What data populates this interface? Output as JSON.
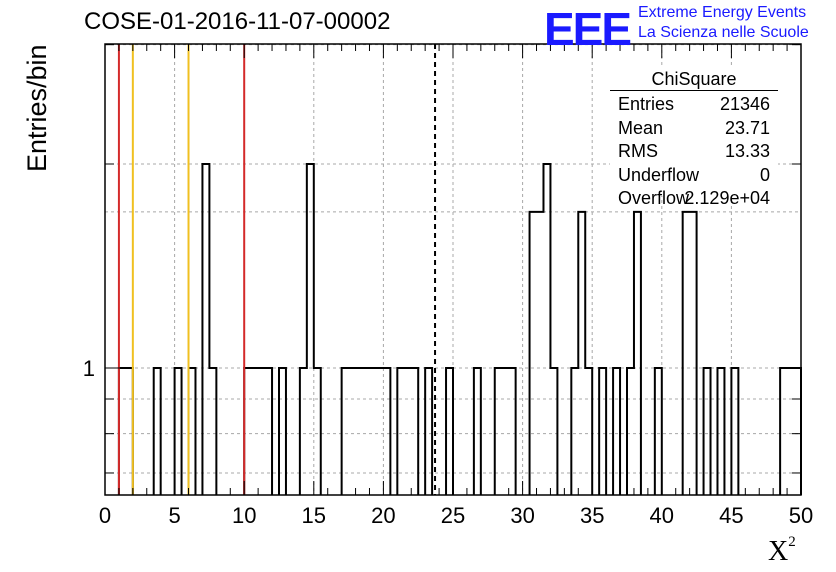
{
  "chart_data": {
    "type": "histogram",
    "title": "COSE-01-2016-11-07-00002",
    "xlabel": "X",
    "xlabel_superscript": "2",
    "ylabel": "Entries/bin",
    "xlim": [
      0,
      50
    ],
    "y_scale": "log",
    "xticks": [
      0,
      5,
      10,
      15,
      20,
      25,
      30,
      35,
      40,
      45,
      50
    ],
    "ytick_label": "1",
    "grid": true,
    "bin_width": 0.5,
    "bins": [
      [
        1,
        2,
        1
      ],
      [
        3.5,
        4,
        1
      ],
      [
        5,
        5.5,
        1
      ],
      [
        6,
        6.5,
        1
      ],
      [
        7,
        7.5,
        2
      ],
      [
        7.5,
        8,
        1
      ],
      [
        10,
        12,
        1
      ],
      [
        12.5,
        13,
        1
      ],
      [
        14,
        14.5,
        1
      ],
      [
        14.5,
        15,
        2
      ],
      [
        15,
        15.5,
        1
      ],
      [
        17,
        18.5,
        1
      ],
      [
        18.5,
        20.5,
        1
      ],
      [
        21,
        21.5,
        1
      ],
      [
        21.5,
        22,
        1
      ],
      [
        22,
        22.5,
        1
      ],
      [
        23,
        23.5,
        1
      ],
      [
        24.5,
        25,
        1
      ],
      [
        26.5,
        27,
        1
      ],
      [
        28,
        28.5,
        1
      ],
      [
        28.5,
        29,
        1
      ],
      [
        29,
        29.5,
        1
      ],
      [
        30.5,
        31.5,
        1.7
      ],
      [
        31.5,
        32,
        2
      ],
      [
        32,
        32.5,
        1
      ],
      [
        33.5,
        34,
        1
      ],
      [
        34,
        34.5,
        1.7
      ],
      [
        34.5,
        35,
        1
      ],
      [
        35.5,
        36,
        1
      ],
      [
        36.5,
        37,
        1
      ],
      [
        37.5,
        38,
        1
      ],
      [
        38,
        38.5,
        1.7
      ],
      [
        39.5,
        40,
        1
      ],
      [
        41.5,
        42.5,
        1.7
      ],
      [
        43,
        43.5,
        1
      ],
      [
        44,
        44.5,
        1
      ],
      [
        45,
        45.5,
        1
      ],
      [
        48.5,
        49,
        1
      ],
      [
        49,
        50,
        1
      ]
    ],
    "vertical_lines": [
      {
        "x": 1,
        "color": "#d42a2a",
        "style": "solid"
      },
      {
        "x": 2,
        "color": "#f0c020",
        "style": "solid"
      },
      {
        "x": 6,
        "color": "#f0c020",
        "style": "solid"
      },
      {
        "x": 10,
        "color": "#d42a2a",
        "style": "solid"
      },
      {
        "x": 23.71,
        "color": "#000000",
        "style": "dashed"
      }
    ]
  },
  "stats": {
    "name": "ChiSquare",
    "rows": [
      {
        "label": "Entries",
        "value": "21346"
      },
      {
        "label": "Mean",
        "value": "23.71"
      },
      {
        "label": "RMS",
        "value": "13.33"
      },
      {
        "label": "Underflow",
        "value": "0"
      },
      {
        "label": "Overflow",
        "value": "2.129e+04"
      }
    ]
  },
  "logo": {
    "mark": "EEE",
    "line1": "Extreme Energy Events",
    "line2": "La Scienza nelle Scuole",
    "color": "#1a1aff"
  }
}
